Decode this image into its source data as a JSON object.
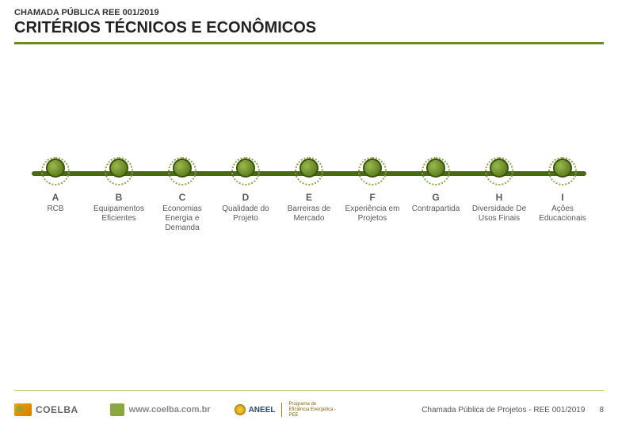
{
  "header": {
    "supertitle": "CHAMADA PÚBLICA REE 001/2019",
    "title": "CRITÉRIOS TÉCNICOS E ECONÔMICOS"
  },
  "colors": {
    "accent": "#6a8a1f",
    "node_fill": "#4a6a10",
    "text_muted": "#5a5a5a",
    "footer_rule": "#b8cc7a"
  },
  "timeline": {
    "criteria": [
      {
        "letter": "A",
        "label": "RCB",
        "top": ""
      },
      {
        "letter": "B",
        "label": "Equipamentos Eficientes",
        "top": ""
      },
      {
        "letter": "C",
        "label": "Economias Energia e Demanda",
        "top": ""
      },
      {
        "letter": "D",
        "label": "Qualidade do Projeto",
        "top": ""
      },
      {
        "letter": "E",
        "label": "Barreiras de Mercado",
        "top": ""
      },
      {
        "letter": "F",
        "label": "Experiência em Projetos",
        "top": ""
      },
      {
        "letter": "G",
        "label": "Contrapartida",
        "top": ""
      },
      {
        "letter": "H",
        "label": "Diversidade De Usos Finais",
        "top": ""
      },
      {
        "letter": "I",
        "label": "Ações Educacionais",
        "top": ""
      }
    ]
  },
  "footer": {
    "brand": "COELBA",
    "url": "www.coelba.com.br",
    "agency": "ANEEL",
    "agency_sub": "Programa de Eficiência Energética - PEE",
    "caption": "Chamada Pública de Projetos - REE 001/2019",
    "page": "8"
  }
}
